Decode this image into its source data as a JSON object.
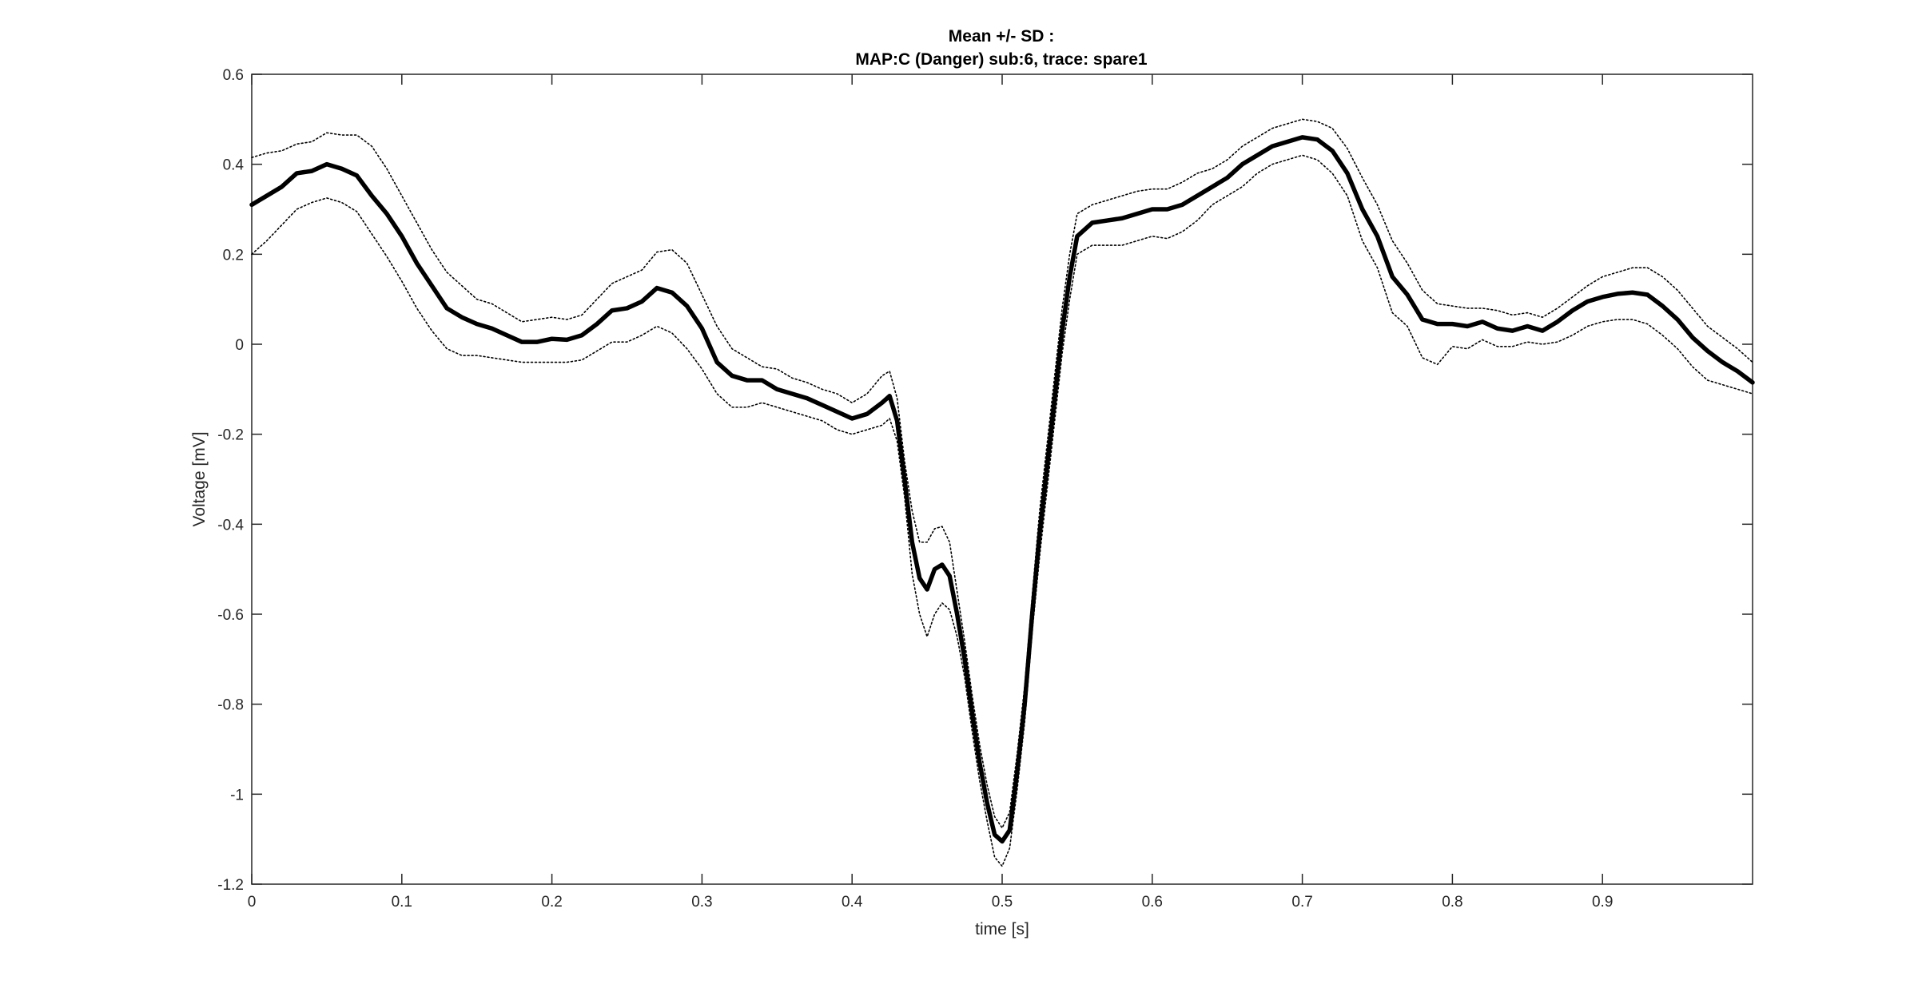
{
  "chart_data": {
    "type": "line",
    "title_line1": "Mean +/- SD :",
    "title_line2": "MAP:C (Danger) sub:6, trace: spare1",
    "xlabel": "time [s]",
    "ylabel": "Voltage [mV]",
    "xlim": [
      0,
      1.0
    ],
    "ylim": [
      -1.2,
      0.6
    ],
    "grid": false,
    "xticks": [
      0,
      0.1,
      0.2,
      0.3,
      0.4,
      0.5,
      0.6,
      0.7,
      0.8,
      0.9
    ],
    "xtick_labels": [
      "0",
      "0.1",
      "0.2",
      "0.3",
      "0.4",
      "0.5",
      "0.6",
      "0.7",
      "0.8",
      "0.9"
    ],
    "yticks": [
      -1.2,
      -1.0,
      -0.8,
      -0.6,
      -0.4,
      -0.2,
      0,
      0.2,
      0.4,
      0.6
    ],
    "ytick_labels": [
      "-1.2",
      "-1",
      "-0.8",
      "-0.6",
      "-0.4",
      "-0.2",
      "0",
      "0.2",
      "0.4",
      "0.6"
    ],
    "series": [
      {
        "role": "mean",
        "color": "#000000",
        "style": "solid",
        "x": [
          0,
          0.01,
          0.02,
          0.03,
          0.04,
          0.05,
          0.06,
          0.07,
          0.08,
          0.09,
          0.1,
          0.11,
          0.12,
          0.13,
          0.14,
          0.15,
          0.16,
          0.17,
          0.18,
          0.19,
          0.2,
          0.21,
          0.22,
          0.23,
          0.24,
          0.25,
          0.26,
          0.27,
          0.28,
          0.29,
          0.3,
          0.31,
          0.32,
          0.33,
          0.34,
          0.35,
          0.36,
          0.37,
          0.38,
          0.39,
          0.4,
          0.41,
          0.42,
          0.425,
          0.43,
          0.435,
          0.44,
          0.445,
          0.45,
          0.455,
          0.46,
          0.465,
          0.47,
          0.475,
          0.48,
          0.485,
          0.49,
          0.495,
          0.5,
          0.505,
          0.51,
          0.515,
          0.52,
          0.525,
          0.53,
          0.535,
          0.54,
          0.545,
          0.55,
          0.56,
          0.57,
          0.58,
          0.59,
          0.6,
          0.61,
          0.62,
          0.63,
          0.64,
          0.65,
          0.66,
          0.67,
          0.68,
          0.69,
          0.7,
          0.71,
          0.72,
          0.73,
          0.74,
          0.75,
          0.76,
          0.77,
          0.78,
          0.79,
          0.8,
          0.81,
          0.82,
          0.83,
          0.84,
          0.85,
          0.86,
          0.87,
          0.88,
          0.89,
          0.9,
          0.91,
          0.92,
          0.93,
          0.94,
          0.95,
          0.96,
          0.97,
          0.98,
          0.99,
          1.0
        ],
        "y": [
          0.31,
          0.33,
          0.35,
          0.38,
          0.385,
          0.4,
          0.39,
          0.375,
          0.33,
          0.29,
          0.24,
          0.18,
          0.13,
          0.08,
          0.06,
          0.045,
          0.035,
          0.02,
          0.005,
          0.005,
          0.012,
          0.01,
          0.02,
          0.045,
          0.075,
          0.08,
          0.095,
          0.125,
          0.115,
          0.085,
          0.035,
          -0.04,
          -0.07,
          -0.08,
          -0.08,
          -0.1,
          -0.11,
          -0.12,
          -0.135,
          -0.15,
          -0.165,
          -0.155,
          -0.13,
          -0.115,
          -0.17,
          -0.3,
          -0.44,
          -0.52,
          -0.545,
          -0.5,
          -0.49,
          -0.515,
          -0.6,
          -0.7,
          -0.82,
          -0.93,
          -1.02,
          -1.09,
          -1.105,
          -1.08,
          -0.95,
          -0.8,
          -0.6,
          -0.42,
          -0.27,
          -0.12,
          0.03,
          0.15,
          0.24,
          0.27,
          0.275,
          0.28,
          0.29,
          0.3,
          0.3,
          0.31,
          0.33,
          0.35,
          0.37,
          0.4,
          0.42,
          0.44,
          0.45,
          0.46,
          0.455,
          0.43,
          0.38,
          0.3,
          0.24,
          0.15,
          0.11,
          0.055,
          0.045,
          0.045,
          0.04,
          0.05,
          0.035,
          0.03,
          0.04,
          0.03,
          0.05,
          0.075,
          0.095,
          0.105,
          0.112,
          0.115,
          0.11,
          0.085,
          0.055,
          0.015,
          -0.015,
          -0.04,
          -0.06,
          -0.085
        ]
      },
      {
        "role": "mean+SD",
        "color": "#000000",
        "style": "dotted",
        "x": [
          0,
          0.01,
          0.02,
          0.03,
          0.04,
          0.05,
          0.06,
          0.07,
          0.08,
          0.09,
          0.1,
          0.11,
          0.12,
          0.13,
          0.14,
          0.15,
          0.16,
          0.17,
          0.18,
          0.19,
          0.2,
          0.21,
          0.22,
          0.23,
          0.24,
          0.25,
          0.26,
          0.27,
          0.28,
          0.29,
          0.3,
          0.31,
          0.32,
          0.33,
          0.34,
          0.35,
          0.36,
          0.37,
          0.38,
          0.39,
          0.4,
          0.41,
          0.42,
          0.425,
          0.43,
          0.435,
          0.44,
          0.445,
          0.45,
          0.455,
          0.46,
          0.465,
          0.47,
          0.475,
          0.48,
          0.485,
          0.49,
          0.495,
          0.5,
          0.505,
          0.51,
          0.515,
          0.52,
          0.525,
          0.53,
          0.535,
          0.54,
          0.545,
          0.55,
          0.56,
          0.57,
          0.58,
          0.59,
          0.6,
          0.61,
          0.62,
          0.63,
          0.64,
          0.65,
          0.66,
          0.67,
          0.68,
          0.69,
          0.7,
          0.71,
          0.72,
          0.73,
          0.74,
          0.75,
          0.76,
          0.77,
          0.78,
          0.79,
          0.8,
          0.81,
          0.82,
          0.83,
          0.84,
          0.85,
          0.86,
          0.87,
          0.88,
          0.89,
          0.9,
          0.91,
          0.92,
          0.93,
          0.94,
          0.95,
          0.96,
          0.97,
          0.98,
          0.99,
          1.0
        ],
        "y": [
          0.415,
          0.425,
          0.43,
          0.445,
          0.45,
          0.47,
          0.465,
          0.465,
          0.44,
          0.39,
          0.33,
          0.27,
          0.21,
          0.16,
          0.13,
          0.1,
          0.09,
          0.07,
          0.05,
          0.055,
          0.06,
          0.055,
          0.065,
          0.1,
          0.135,
          0.15,
          0.165,
          0.205,
          0.21,
          0.18,
          0.11,
          0.04,
          -0.01,
          -0.03,
          -0.05,
          -0.055,
          -0.075,
          -0.085,
          -0.1,
          -0.11,
          -0.13,
          -0.11,
          -0.07,
          -0.06,
          -0.12,
          -0.26,
          -0.37,
          -0.44,
          -0.44,
          -0.41,
          -0.405,
          -0.44,
          -0.55,
          -0.66,
          -0.78,
          -0.89,
          -0.98,
          -1.05,
          -1.075,
          -1.04,
          -0.91,
          -0.76,
          -0.56,
          -0.37,
          -0.22,
          -0.07,
          0.08,
          0.2,
          0.29,
          0.31,
          0.32,
          0.33,
          0.34,
          0.345,
          0.345,
          0.36,
          0.38,
          0.39,
          0.41,
          0.44,
          0.46,
          0.48,
          0.49,
          0.5,
          0.495,
          0.48,
          0.435,
          0.37,
          0.31,
          0.23,
          0.18,
          0.12,
          0.09,
          0.085,
          0.08,
          0.08,
          0.075,
          0.065,
          0.07,
          0.06,
          0.08,
          0.105,
          0.13,
          0.15,
          0.16,
          0.17,
          0.17,
          0.15,
          0.12,
          0.08,
          0.04,
          0.015,
          -0.01,
          -0.04
        ]
      },
      {
        "role": "mean-SD",
        "color": "#000000",
        "style": "dotted",
        "x": [
          0,
          0.01,
          0.02,
          0.03,
          0.04,
          0.05,
          0.06,
          0.07,
          0.08,
          0.09,
          0.1,
          0.11,
          0.12,
          0.13,
          0.14,
          0.15,
          0.16,
          0.17,
          0.18,
          0.19,
          0.2,
          0.21,
          0.22,
          0.23,
          0.24,
          0.25,
          0.26,
          0.27,
          0.28,
          0.29,
          0.3,
          0.31,
          0.32,
          0.33,
          0.34,
          0.35,
          0.36,
          0.37,
          0.38,
          0.39,
          0.4,
          0.41,
          0.42,
          0.425,
          0.43,
          0.435,
          0.44,
          0.445,
          0.45,
          0.455,
          0.46,
          0.465,
          0.47,
          0.475,
          0.48,
          0.485,
          0.49,
          0.495,
          0.5,
          0.505,
          0.51,
          0.515,
          0.52,
          0.525,
          0.53,
          0.535,
          0.54,
          0.545,
          0.55,
          0.56,
          0.57,
          0.58,
          0.59,
          0.6,
          0.61,
          0.62,
          0.63,
          0.64,
          0.65,
          0.66,
          0.67,
          0.68,
          0.69,
          0.7,
          0.71,
          0.72,
          0.73,
          0.74,
          0.75,
          0.76,
          0.77,
          0.78,
          0.79,
          0.8,
          0.81,
          0.82,
          0.83,
          0.84,
          0.85,
          0.86,
          0.87,
          0.88,
          0.89,
          0.9,
          0.91,
          0.92,
          0.93,
          0.94,
          0.95,
          0.96,
          0.97,
          0.98,
          0.99,
          1.0
        ],
        "y": [
          0.2,
          0.23,
          0.265,
          0.3,
          0.315,
          0.325,
          0.315,
          0.295,
          0.245,
          0.195,
          0.14,
          0.08,
          0.03,
          -0.01,
          -0.025,
          -0.025,
          -0.03,
          -0.035,
          -0.04,
          -0.04,
          -0.04,
          -0.04,
          -0.035,
          -0.015,
          0.005,
          0.005,
          0.02,
          0.04,
          0.025,
          -0.01,
          -0.055,
          -0.11,
          -0.14,
          -0.14,
          -0.13,
          -0.14,
          -0.15,
          -0.16,
          -0.17,
          -0.19,
          -0.2,
          -0.19,
          -0.18,
          -0.165,
          -0.215,
          -0.34,
          -0.51,
          -0.6,
          -0.65,
          -0.6,
          -0.575,
          -0.59,
          -0.65,
          -0.74,
          -0.86,
          -0.97,
          -1.06,
          -1.14,
          -1.16,
          -1.12,
          -0.99,
          -0.84,
          -0.64,
          -0.47,
          -0.32,
          -0.17,
          -0.02,
          0.1,
          0.2,
          0.22,
          0.22,
          0.22,
          0.23,
          0.24,
          0.235,
          0.25,
          0.275,
          0.31,
          0.33,
          0.35,
          0.38,
          0.4,
          0.41,
          0.42,
          0.41,
          0.38,
          0.33,
          0.23,
          0.17,
          0.07,
          0.04,
          -0.03,
          -0.045,
          -0.005,
          -0.01,
          0.01,
          -0.005,
          -0.005,
          0.005,
          0.0,
          0.005,
          0.02,
          0.04,
          0.05,
          0.055,
          0.055,
          0.045,
          0.02,
          -0.01,
          -0.05,
          -0.08,
          -0.09,
          -0.1,
          -0.11
        ]
      }
    ]
  }
}
